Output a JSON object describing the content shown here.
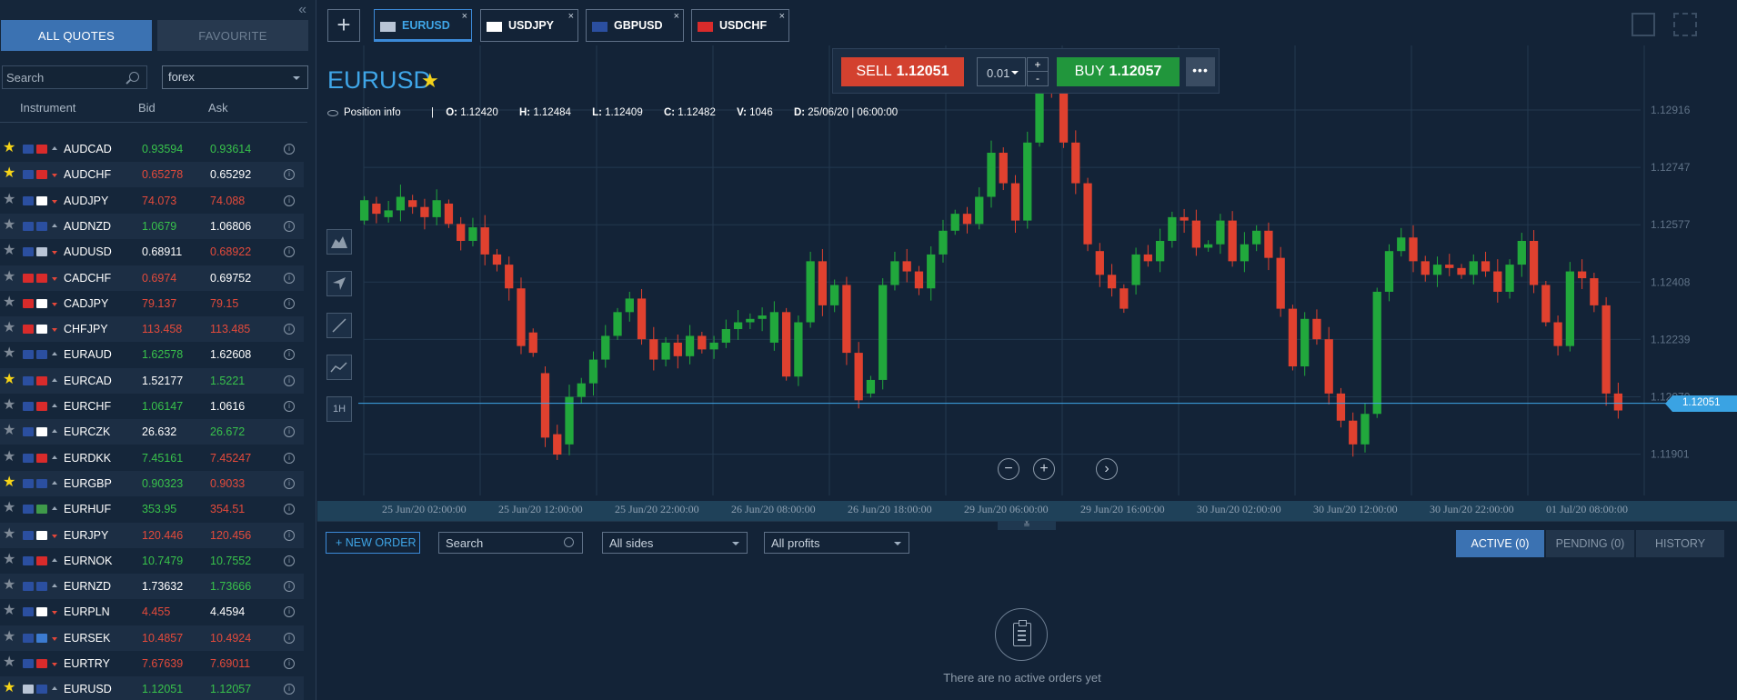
{
  "sidebar": {
    "tabs": {
      "all": "ALL QUOTES",
      "fav": "FAVOURITE"
    },
    "search_placeholder": "Search",
    "filter_value": "forex",
    "columns": {
      "instrument": "Instrument",
      "bid": "Bid",
      "ask": "Ask"
    },
    "rows": [
      {
        "fav": true,
        "f1": "#2b4fa0",
        "f2": "#d92b2b",
        "dir": "up",
        "sym": "AUDCAD",
        "bid": "0.93594",
        "bidc": "g",
        "ask": "0.93614",
        "askc": "g"
      },
      {
        "fav": true,
        "f1": "#2b4fa0",
        "f2": "#d92b2b",
        "dir": "dn",
        "sym": "AUDCHF",
        "bid": "0.65278",
        "bidc": "r",
        "ask": "0.65292",
        "askc": "w"
      },
      {
        "fav": false,
        "f1": "#2b4fa0",
        "f2": "#ffffff",
        "dir": "dn",
        "sym": "AUDJPY",
        "bid": "74.073",
        "bidc": "r",
        "ask": "74.088",
        "askc": "r"
      },
      {
        "fav": false,
        "f1": "#2b4fa0",
        "f2": "#2b4fa0",
        "dir": "up",
        "sym": "AUDNZD",
        "bid": "1.0679",
        "bidc": "g",
        "ask": "1.06806",
        "askc": "w"
      },
      {
        "fav": false,
        "f1": "#2b4fa0",
        "f2": "#b9c5d6",
        "dir": "dn",
        "sym": "AUDUSD",
        "bid": "0.68911",
        "bidc": "w",
        "ask": "0.68922",
        "askc": "r"
      },
      {
        "fav": false,
        "f1": "#d92b2b",
        "f2": "#d92b2b",
        "dir": "dn",
        "sym": "CADCHF",
        "bid": "0.6974",
        "bidc": "r",
        "ask": "0.69752",
        "askc": "w"
      },
      {
        "fav": false,
        "f1": "#d92b2b",
        "f2": "#ffffff",
        "dir": "dn",
        "sym": "CADJPY",
        "bid": "79.137",
        "bidc": "r",
        "ask": "79.15",
        "askc": "r"
      },
      {
        "fav": false,
        "f1": "#d92b2b",
        "f2": "#ffffff",
        "dir": "dn",
        "sym": "CHFJPY",
        "bid": "113.458",
        "bidc": "r",
        "ask": "113.485",
        "askc": "r"
      },
      {
        "fav": false,
        "f1": "#2b4fa0",
        "f2": "#2b4fa0",
        "dir": "up",
        "sym": "EURAUD",
        "bid": "1.62578",
        "bidc": "g",
        "ask": "1.62608",
        "askc": "w"
      },
      {
        "fav": true,
        "f1": "#2b4fa0",
        "f2": "#d92b2b",
        "dir": "up",
        "sym": "EURCAD",
        "bid": "1.52177",
        "bidc": "w",
        "ask": "1.5221",
        "askc": "g"
      },
      {
        "fav": false,
        "f1": "#2b4fa0",
        "f2": "#d92b2b",
        "dir": "up",
        "sym": "EURCHF",
        "bid": "1.06147",
        "bidc": "g",
        "ask": "1.0616",
        "askc": "w"
      },
      {
        "fav": false,
        "f1": "#2b4fa0",
        "f2": "#ffffff",
        "dir": "up",
        "sym": "EURCZK",
        "bid": "26.632",
        "bidc": "w",
        "ask": "26.672",
        "askc": "g"
      },
      {
        "fav": false,
        "f1": "#2b4fa0",
        "f2": "#d92b2b",
        "dir": "up",
        "sym": "EURDKK",
        "bid": "7.45161",
        "bidc": "g",
        "ask": "7.45247",
        "askc": "r"
      },
      {
        "fav": true,
        "f1": "#2b4fa0",
        "f2": "#2b4fa0",
        "dir": "up",
        "sym": "EURGBP",
        "bid": "0.90323",
        "bidc": "g",
        "ask": "0.9033",
        "askc": "r"
      },
      {
        "fav": false,
        "f1": "#2b4fa0",
        "f2": "#3f9a4a",
        "dir": "up",
        "sym": "EURHUF",
        "bid": "353.95",
        "bidc": "g",
        "ask": "354.51",
        "askc": "r"
      },
      {
        "fav": false,
        "f1": "#2b4fa0",
        "f2": "#ffffff",
        "dir": "dn",
        "sym": "EURJPY",
        "bid": "120.446",
        "bidc": "r",
        "ask": "120.456",
        "askc": "r"
      },
      {
        "fav": false,
        "f1": "#2b4fa0",
        "f2": "#d92b2b",
        "dir": "up",
        "sym": "EURNOK",
        "bid": "10.7479",
        "bidc": "g",
        "ask": "10.7552",
        "askc": "g"
      },
      {
        "fav": false,
        "f1": "#2b4fa0",
        "f2": "#2b4fa0",
        "dir": "up",
        "sym": "EURNZD",
        "bid": "1.73632",
        "bidc": "w",
        "ask": "1.73666",
        "askc": "g"
      },
      {
        "fav": false,
        "f1": "#2b4fa0",
        "f2": "#ffffff",
        "dir": "dn",
        "sym": "EURPLN",
        "bid": "4.455",
        "bidc": "r",
        "ask": "4.4594",
        "askc": "w"
      },
      {
        "fav": false,
        "f1": "#2b4fa0",
        "f2": "#3c7bd0",
        "dir": "dn",
        "sym": "EURSEK",
        "bid": "10.4857",
        "bidc": "r",
        "ask": "10.4924",
        "askc": "r"
      },
      {
        "fav": false,
        "f1": "#2b4fa0",
        "f2": "#d92b2b",
        "dir": "dn",
        "sym": "EURTRY",
        "bid": "7.67639",
        "bidc": "r",
        "ask": "7.69011",
        "askc": "r"
      },
      {
        "fav": true,
        "f1": "#b9c5d6",
        "f2": "#2b4fa0",
        "dir": "up",
        "sym": "EURUSD",
        "bid": "1.12051",
        "bidc": "g",
        "ask": "1.12057",
        "askc": "g"
      }
    ]
  },
  "tabs": [
    {
      "sym": "EURUSD",
      "flag": "#b9c5d6",
      "active": true
    },
    {
      "sym": "USDJPY",
      "flag": "#ffffff",
      "active": false
    },
    {
      "sym": "GBPUSD",
      "flag": "#2b4fa0",
      "active": false
    },
    {
      "sym": "USDCHF",
      "flag": "#d92b2b",
      "active": false
    }
  ],
  "tab_close": "×",
  "chart_header": {
    "symbol": "EURUSD",
    "star": "★",
    "position_info": "Position info",
    "sep": "|",
    "o_label": "O:",
    "o": "1.12420",
    "h_label": "H:",
    "h": "1.12484",
    "l_label": "L:",
    "l": "1.12409",
    "c_label": "C:",
    "c": "1.12482",
    "v_label": "V:",
    "v": "1046",
    "d_label": "D:",
    "d": "25/06/20 | 06:00:00"
  },
  "trade": {
    "sell_label": "SELL",
    "sell_price": "1.12051",
    "lot": "0.01",
    "plus": "+",
    "minus": "-",
    "buy_label": "BUY",
    "buy_price": "1.12057",
    "more": "•••"
  },
  "tools": {
    "timeframe": "1H"
  },
  "zoom": {
    "minus": "−",
    "plus": "+",
    "next": "›"
  },
  "colors": {
    "up": "#21a83c",
    "down": "#e0412f",
    "accent": "#3fa6e8",
    "bg": "#132337"
  },
  "chart_data": {
    "type": "candlestick",
    "y_ticks": [
      "1.12916",
      "1.12747",
      "1.12577",
      "1.12408",
      "1.12239",
      "1.12070",
      "1.11901"
    ],
    "x_ticks": [
      "25 Jun/20 02:00:00",
      "25 Jun/20 12:00:00",
      "25 Jun/20 22:00:00",
      "26 Jun/20 08:00:00",
      "26 Jun/20 18:00:00",
      "29 Jun/20 06:00:00",
      "29 Jun/20 16:00:00",
      "30 Jun/20 02:00:00",
      "30 Jun/20 12:00:00",
      "30 Jun/20 22:00:00",
      "01 Jul/20 08:00:00"
    ],
    "current_price": "1.12051",
    "closes": [
      1.1265,
      1.1261,
      1.1262,
      1.1266,
      1.1263,
      1.126,
      1.1265,
      1.1258,
      1.1253,
      1.1257,
      1.1249,
      1.1246,
      1.1239,
      1.1222,
      1.122,
      1.1195,
      1.119,
      1.1207,
      1.1211,
      1.1218,
      1.1225,
      1.1232,
      1.1236,
      1.1224,
      1.1218,
      1.1223,
      1.1219,
      1.1225,
      1.1221,
      1.1223,
      1.1227,
      1.1229,
      1.123,
      1.1231,
      1.1232,
      1.1213,
      1.1229,
      1.1247,
      1.1234,
      1.124,
      1.122,
      1.1206,
      1.1212,
      1.124,
      1.1247,
      1.1244,
      1.1239,
      1.1249,
      1.1256,
      1.1261,
      1.1258,
      1.1266,
      1.1279,
      1.127,
      1.1259,
      1.1282,
      1.1299,
      1.1298,
      1.1282,
      1.127,
      1.1252,
      1.1243,
      1.1239,
      1.1233,
      1.1249,
      1.1247,
      1.1253,
      1.126,
      1.1259,
      1.1251,
      1.1252,
      1.1259,
      1.1247,
      1.1252,
      1.1256,
      1.1248,
      1.1233,
      1.1216,
      1.123,
      1.1224,
      1.1208,
      1.12,
      1.1193,
      1.1202,
      1.1238,
      1.125,
      1.1254,
      1.1247,
      1.1243,
      1.1246,
      1.1245,
      1.1243,
      1.1247,
      1.1244,
      1.1238,
      1.1246,
      1.1253,
      1.124,
      1.1229,
      1.1222,
      1.1244,
      1.1242,
      1.1234,
      1.1208,
      1.1203
    ],
    "opens": [
      1.1259,
      1.1264,
      1.126,
      1.1262,
      1.1265,
      1.1263,
      1.126,
      1.1264,
      1.1258,
      1.1253,
      1.1257,
      1.1249,
      1.1246,
      1.1239,
      1.1226,
      1.1214,
      1.1196,
      1.1193,
      1.1207,
      1.1211,
      1.1218,
      1.1225,
      1.1232,
      1.1236,
      1.1224,
      1.1218,
      1.1223,
      1.1219,
      1.1225,
      1.1221,
      1.1223,
      1.1227,
      1.1229,
      1.123,
      1.1223,
      1.1232,
      1.1213,
      1.1229,
      1.1247,
      1.1234,
      1.124,
      1.122,
      1.1208,
      1.1212,
      1.124,
      1.1247,
      1.1244,
      1.1239,
      1.1249,
      1.1256,
      1.1261,
      1.1258,
      1.1266,
      1.1279,
      1.127,
      1.1259,
      1.1282,
      1.1299,
      1.1298,
      1.1282,
      1.127,
      1.125,
      1.1243,
      1.1239,
      1.124,
      1.1249,
      1.1247,
      1.1253,
      1.126,
      1.1259,
      1.1251,
      1.1252,
      1.1259,
      1.1247,
      1.1252,
      1.1256,
      1.1248,
      1.1233,
      1.1216,
      1.123,
      1.1224,
      1.1208,
      1.12,
      1.1193,
      1.1202,
      1.1238,
      1.125,
      1.1254,
      1.1247,
      1.1243,
      1.1246,
      1.1245,
      1.1243,
      1.1247,
      1.1244,
      1.1238,
      1.1246,
      1.1253,
      1.124,
      1.1229,
      1.1222,
      1.1244,
      1.1242,
      1.1234,
      1.1208
    ]
  },
  "orders": {
    "new_order": "NEW ORDER",
    "search_placeholder": "Search",
    "sides": "All sides",
    "profits": "All profits",
    "tab_active": "ACTIVE (0)",
    "tab_pending": "PENDING (0)",
    "tab_history": "HISTORY",
    "empty": "There are no active orders yet",
    "drag": "≚"
  }
}
